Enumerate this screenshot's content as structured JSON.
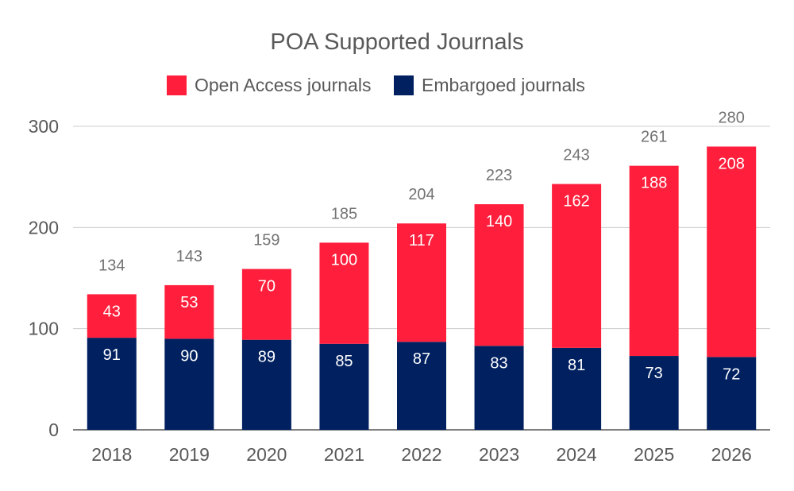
{
  "chart_data": {
    "type": "bar",
    "stacked": true,
    "title": "POA Supported Journals",
    "categories": [
      "2018",
      "2019",
      "2020",
      "2021",
      "2022",
      "2023",
      "2024",
      "2025",
      "2026"
    ],
    "series": [
      {
        "name": "Embargoed journals",
        "color": "#002060",
        "values": [
          91,
          90,
          89,
          85,
          87,
          83,
          81,
          73,
          72
        ]
      },
      {
        "name": "Open Access journals",
        "color": "#ff1f3c",
        "values": [
          43,
          53,
          70,
          100,
          117,
          140,
          162,
          188,
          208
        ]
      }
    ],
    "totals": [
      134,
      143,
      159,
      185,
      204,
      223,
      243,
      261,
      280
    ],
    "ylim": [
      0,
      300
    ],
    "yticks": [
      0,
      100,
      200,
      300
    ],
    "grid": true,
    "legend": {
      "position": "top",
      "order": [
        "Open Access journals",
        "Embargoed journals"
      ]
    }
  }
}
